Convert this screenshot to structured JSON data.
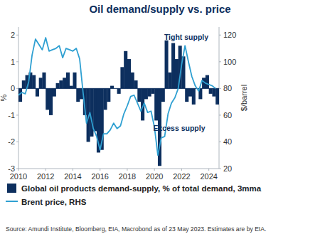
{
  "chart_data": {
    "type": "combo",
    "title": "Oil demand/supply vs. price",
    "y_label": "%",
    "y2_label": "$/barrel",
    "annotations": [
      "Tight supply",
      "Excess supply"
    ],
    "source": "Source: Amundi Institute, Bloomberg, EIA, Macrobond as of 23 May 2023. Estimates are by EIA.",
    "x": [
      2010,
      2010.25,
      2010.5,
      2010.75,
      2011,
      2011.25,
      2011.5,
      2011.75,
      2012,
      2012.25,
      2012.5,
      2012.75,
      2013,
      2013.25,
      2013.5,
      2013.75,
      2014,
      2014.25,
      2014.5,
      2014.75,
      2015,
      2015.25,
      2015.5,
      2015.75,
      2016,
      2016.25,
      2016.5,
      2016.75,
      2017,
      2017.25,
      2017.5,
      2017.75,
      2018,
      2018.25,
      2018.5,
      2018.75,
      2019,
      2019.25,
      2019.5,
      2019.75,
      2020,
      2020.25,
      2020.5,
      2020.75,
      2021,
      2021.25,
      2021.5,
      2021.75,
      2022,
      2022.25,
      2022.5,
      2022.75,
      2023,
      2023.25,
      2023.5,
      2023.75,
      2024,
      2024.25,
      2024.5
    ],
    "series": [
      {
        "name": "Global oil products demand-supply, % of total demand, 3mma",
        "type": "bar",
        "color": "#0d2f5e",
        "values": [
          -0.5,
          0.3,
          0.5,
          0.6,
          0.5,
          -0.3,
          0.4,
          0.6,
          -0.8,
          -1.0,
          -0.3,
          0.2,
          0.3,
          0.4,
          0.6,
          0.1,
          0.6,
          -0.5,
          -0.4,
          -1.0,
          -2.0,
          -1.8,
          -1.6,
          -2.4,
          -2.3,
          -0.8,
          -0.5,
          0.1,
          0.0,
          -0.2,
          0.8,
          1.4,
          1.1,
          0.6,
          0.3,
          -0.5,
          -1.2,
          -0.4,
          -0.3,
          -0.2,
          -1.2,
          -2.9,
          -0.5,
          1.8,
          0.6,
          1.7,
          1.1,
          1.6,
          1.2,
          -0.5,
          -0.3,
          -0.6,
          0.0,
          -0.4,
          0.4,
          0.5,
          -0.2,
          -0.3,
          -0.6
        ]
      },
      {
        "name": "Brent price, RHS",
        "type": "line",
        "axis": "y2",
        "color": "#2fa0d2",
        "values": [
          75,
          77,
          76,
          85,
          105,
          117,
          113,
          109,
          118,
          108,
          109,
          110,
          112,
          103,
          110,
          109,
          108,
          110,
          102,
          77,
          54,
          62,
          50,
          44,
          34,
          46,
          46,
          49,
          54,
          50,
          52,
          61,
          67,
          74,
          75,
          69,
          63,
          69,
          62,
          63,
          51,
          30,
          43,
          44,
          61,
          69,
          73,
          80,
          98,
          112,
          100,
          89,
          82,
          78,
          86,
          84,
          83,
          82,
          80
        ]
      }
    ],
    "xlim": [
      2010,
      2024.75
    ],
    "xticks": [
      2010,
      2012,
      2014,
      2016,
      2018,
      2020,
      2022,
      2024
    ],
    "ylim": [
      -3,
      2.3
    ],
    "yticks": [
      -3,
      -2,
      -1,
      0,
      1,
      2
    ],
    "y2lim": [
      20,
      126
    ],
    "y2ticks": [
      20,
      40,
      60,
      80,
      100,
      120
    ],
    "grid": false
  }
}
